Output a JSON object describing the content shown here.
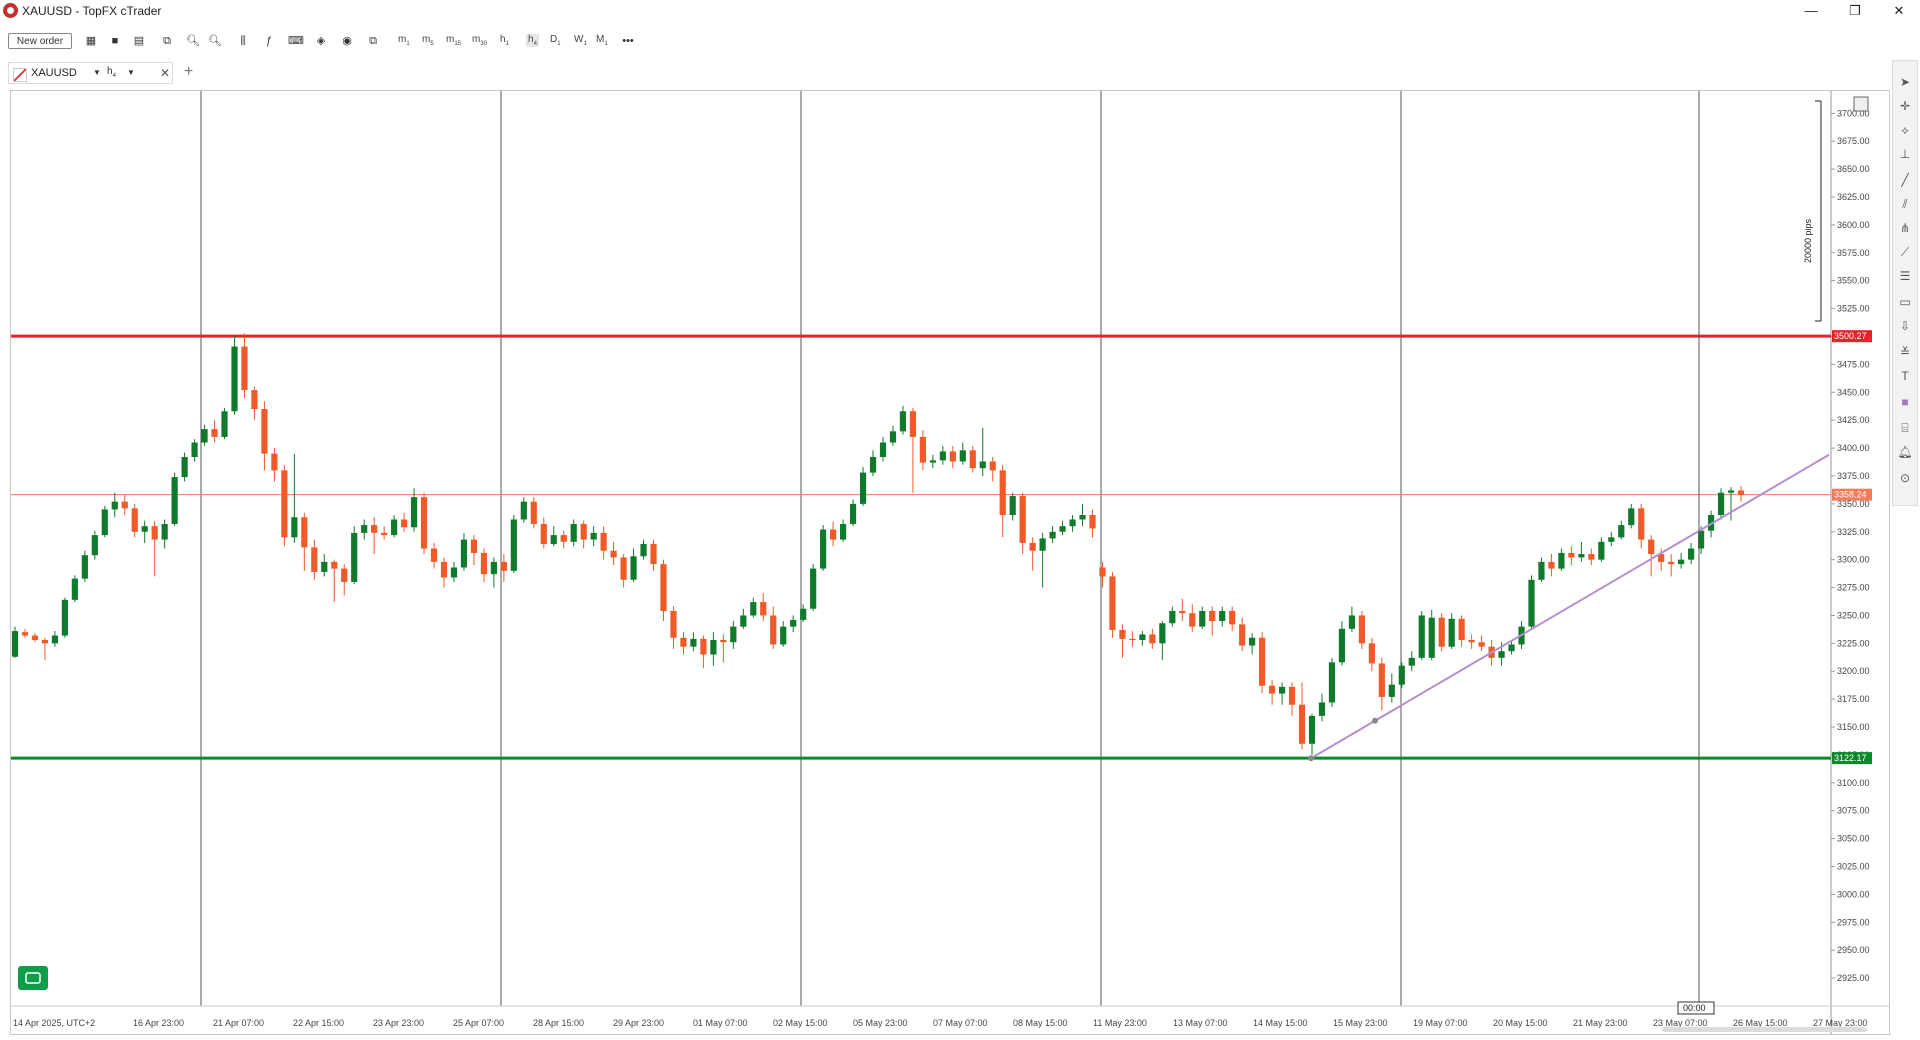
{
  "window": {
    "title": "XAUUSD - TopFX cTrader",
    "minimize_glyph": "—",
    "restore_glyph": "❐",
    "close_glyph": "✕"
  },
  "toolbar": {
    "new_order_label": "New order",
    "timeframes": [
      {
        "main": "m",
        "sub": "1"
      },
      {
        "main": "m",
        "sub": "5"
      },
      {
        "main": "m",
        "sub": "15"
      },
      {
        "main": "m",
        "sub": "30"
      },
      {
        "main": "h",
        "sub": "1"
      },
      {
        "main": "h",
        "sub": "4"
      },
      {
        "main": "D",
        "sub": "1"
      },
      {
        "main": "W",
        "sub": "1"
      },
      {
        "main": "M",
        "sub": "1"
      }
    ],
    "more_glyph": "•••"
  },
  "tab": {
    "symbol": "XAUUSD",
    "timeframe_main": "h",
    "timeframe_sub": "4",
    "add_glyph": "+"
  },
  "chart_data": {
    "type": "candlestick",
    "symbol": "XAUUSD",
    "timeframe": "h4",
    "y_range": [
      2900,
      3720
    ],
    "y_ticks": [
      2925,
      2950,
      2975,
      3000,
      3025,
      3050,
      3075,
      3100,
      3125,
      3150,
      3175,
      3200,
      3225,
      3250,
      3275,
      3300,
      3325,
      3350,
      3375,
      3400,
      3425,
      3450,
      3475,
      3500,
      3525,
      3550,
      3575,
      3600,
      3625,
      3650,
      3675,
      3700
    ],
    "x_labels": [
      "14 Apr 2025, UTC+2",
      "16 Apr 23:00",
      "21 Apr 07:00",
      "22 Apr 15:00",
      "23 Apr 23:00",
      "25 Apr 07:00",
      "28 Apr 15:00",
      "29 Apr 23:00",
      "01 May 07:00",
      "02 May 15:00",
      "05 May 23:00",
      "07 May 07:00",
      "08 May 15:00",
      "11 May 23:00",
      "13 May 07:00",
      "14 May 15:00",
      "15 May 23:00",
      "19 May 07:00",
      "20 May 15:00",
      "21 May 23:00",
      "23 May 07:00",
      "26 May 15:00",
      "27 May 23:00"
    ],
    "horizontal_lines": [
      {
        "price": 3500.27,
        "label": "3500.27",
        "color": "#e8212b"
      },
      {
        "price": 3122.17,
        "label": "3122.17",
        "color": "#0a8a2a"
      },
      {
        "price": 3358.24,
        "label": "3358.24",
        "color": "#f47c5a"
      }
    ],
    "trendline": {
      "from_price": 3122,
      "to_price": 3394,
      "color": "#b48fd0"
    },
    "pips_ruler_label": "20000 pips",
    "current_time_label": "00:00",
    "bull_color": "#0f7a2c",
    "bear_color": "#ef5a28",
    "candles": [
      [
        3213,
        3236,
        3212,
        3240
      ],
      [
        3235,
        3232,
        3230,
        3238
      ],
      [
        3232,
        3228,
        3226,
        3234
      ],
      [
        3228,
        3225,
        3210,
        3230
      ],
      [
        3225,
        3232,
        3222,
        3236
      ],
      [
        3232,
        3264,
        3230,
        3266
      ],
      [
        3264,
        3283,
        3262,
        3286
      ],
      [
        3283,
        3304,
        3280,
        3308
      ],
      [
        3304,
        3322,
        3300,
        3326
      ],
      [
        3322,
        3345,
        3320,
        3348
      ],
      [
        3345,
        3352,
        3338,
        3360
      ],
      [
        3352,
        3346,
        3340,
        3358
      ],
      [
        3346,
        3325,
        3320,
        3350
      ],
      [
        3325,
        3330,
        3315,
        3335
      ],
      [
        3330,
        3318,
        3285,
        3335
      ],
      [
        3318,
        3332,
        3310,
        3336
      ],
      [
        3332,
        3374,
        3330,
        3378
      ],
      [
        3374,
        3392,
        3370,
        3396
      ],
      [
        3392,
        3405,
        3388,
        3408
      ],
      [
        3405,
        3417,
        3402,
        3421
      ],
      [
        3417,
        3410,
        3405,
        3425
      ],
      [
        3410,
        3433,
        3408,
        3436
      ],
      [
        3433,
        3491,
        3430,
        3500
      ],
      [
        3491,
        3452,
        3445,
        3503
      ],
      [
        3452,
        3435,
        3425,
        3455
      ],
      [
        3435,
        3395,
        3380,
        3442
      ],
      [
        3395,
        3380,
        3370,
        3400
      ],
      [
        3380,
        3320,
        3312,
        3385
      ],
      [
        3320,
        3338,
        3315,
        3395
      ],
      [
        3338,
        3311,
        3290,
        3342
      ],
      [
        3311,
        3289,
        3282,
        3318
      ],
      [
        3289,
        3298,
        3285,
        3305
      ],
      [
        3298,
        3292,
        3262,
        3300
      ],
      [
        3292,
        3280,
        3268,
        3296
      ],
      [
        3280,
        3324,
        3278,
        3330
      ],
      [
        3324,
        3331,
        3318,
        3336
      ],
      [
        3331,
        3324,
        3305,
        3338
      ],
      [
        3324,
        3322,
        3318,
        3330
      ],
      [
        3322,
        3336,
        3320,
        3340
      ],
      [
        3336,
        3329,
        3325,
        3342
      ],
      [
        3329,
        3356,
        3325,
        3364
      ],
      [
        3356,
        3310,
        3305,
        3360
      ],
      [
        3310,
        3298,
        3292,
        3315
      ],
      [
        3298,
        3284,
        3275,
        3302
      ],
      [
        3284,
        3293,
        3280,
        3298
      ],
      [
        3293,
        3318,
        3290,
        3324
      ],
      [
        3318,
        3306,
        3295,
        3322
      ],
      [
        3306,
        3287,
        3280,
        3310
      ],
      [
        3287,
        3298,
        3275,
        3302
      ],
      [
        3298,
        3290,
        3280,
        3305
      ],
      [
        3290,
        3336,
        3288,
        3340
      ],
      [
        3336,
        3352,
        3333,
        3356
      ],
      [
        3352,
        3332,
        3328,
        3356
      ],
      [
        3332,
        3314,
        3310,
        3338
      ],
      [
        3314,
        3322,
        3312,
        3330
      ],
      [
        3322,
        3316,
        3310,
        3326
      ],
      [
        3316,
        3332,
        3312,
        3336
      ],
      [
        3332,
        3318,
        3310,
        3335
      ],
      [
        3318,
        3324,
        3312,
        3330
      ],
      [
        3324,
        3308,
        3300,
        3330
      ],
      [
        3308,
        3302,
        3295,
        3316
      ],
      [
        3302,
        3282,
        3275,
        3305
      ],
      [
        3282,
        3303,
        3280,
        3310
      ],
      [
        3303,
        3314,
        3300,
        3318
      ],
      [
        3314,
        3296,
        3290,
        3318
      ],
      [
        3296,
        3254,
        3245,
        3300
      ],
      [
        3254,
        3230,
        3220,
        3258
      ],
      [
        3230,
        3222,
        3215,
        3235
      ],
      [
        3222,
        3229,
        3218,
        3235
      ],
      [
        3229,
        3215,
        3203,
        3232
      ],
      [
        3215,
        3228,
        3205,
        3235
      ],
      [
        3228,
        3226,
        3208,
        3233
      ],
      [
        3226,
        3240,
        3220,
        3245
      ],
      [
        3240,
        3250,
        3238,
        3256
      ],
      [
        3250,
        3262,
        3248,
        3266
      ],
      [
        3262,
        3250,
        3245,
        3270
      ],
      [
        3250,
        3224,
        3220,
        3258
      ],
      [
        3224,
        3240,
        3222,
        3245
      ],
      [
        3240,
        3246,
        3235,
        3250
      ],
      [
        3246,
        3256,
        3244,
        3260
      ],
      [
        3256,
        3292,
        3254,
        3296
      ],
      [
        3292,
        3327,
        3290,
        3331
      ],
      [
        3327,
        3318,
        3312,
        3334
      ],
      [
        3318,
        3332,
        3316,
        3336
      ],
      [
        3332,
        3350,
        3330,
        3354
      ],
      [
        3350,
        3378,
        3348,
        3383
      ],
      [
        3378,
        3392,
        3375,
        3398
      ],
      [
        3392,
        3405,
        3388,
        3410
      ],
      [
        3405,
        3415,
        3402,
        3420
      ],
      [
        3415,
        3433,
        3412,
        3438
      ],
      [
        3433,
        3410,
        3360,
        3436
      ],
      [
        3410,
        3387,
        3380,
        3416
      ],
      [
        3387,
        3389,
        3382,
        3394
      ],
      [
        3389,
        3397,
        3385,
        3402
      ],
      [
        3397,
        3388,
        3382,
        3402
      ],
      [
        3388,
        3398,
        3385,
        3405
      ],
      [
        3398,
        3382,
        3378,
        3402
      ],
      [
        3382,
        3388,
        3375,
        3418
      ],
      [
        3388,
        3380,
        3370,
        3392
      ],
      [
        3380,
        3340,
        3320,
        3385
      ],
      [
        3340,
        3357,
        3335,
        3360
      ],
      [
        3357,
        3315,
        3305,
        3360
      ],
      [
        3315,
        3308,
        3290,
        3320
      ],
      [
        3308,
        3319,
        3275,
        3324
      ],
      [
        3319,
        3325,
        3315,
        3330
      ],
      [
        3325,
        3330,
        3322,
        3335
      ],
      [
        3330,
        3336,
        3325,
        3340
      ],
      [
        3336,
        3340,
        3330,
        3350
      ],
      [
        3340,
        3328,
        3320,
        3345
      ],
      [
        3293,
        3285,
        3275,
        3298
      ],
      [
        3285,
        3237,
        3230,
        3289
      ],
      [
        3237,
        3229,
        3212,
        3242
      ],
      [
        3229,
        3228,
        3222,
        3236
      ],
      [
        3228,
        3233,
        3223,
        3236
      ],
      [
        3233,
        3225,
        3220,
        3238
      ],
      [
        3225,
        3243,
        3210,
        3245
      ],
      [
        3243,
        3254,
        3240,
        3258
      ],
      [
        3254,
        3252,
        3245,
        3265
      ],
      [
        3252,
        3240,
        3235,
        3260
      ],
      [
        3240,
        3254,
        3238,
        3258
      ],
      [
        3254,
        3245,
        3232,
        3258
      ],
      [
        3245,
        3254,
        3240,
        3258
      ],
      [
        3254,
        3242,
        3236,
        3258
      ],
      [
        3242,
        3223,
        3218,
        3248
      ],
      [
        3223,
        3230,
        3215,
        3234
      ],
      [
        3230,
        3187,
        3180,
        3235
      ],
      [
        3187,
        3180,
        3170,
        3192
      ],
      [
        3180,
        3186,
        3170,
        3190
      ],
      [
        3186,
        3170,
        3160,
        3190
      ],
      [
        3170,
        3135,
        3130,
        3190
      ],
      [
        3135,
        3160,
        3125,
        3162
      ],
      [
        3160,
        3172,
        3155,
        3180
      ],
      [
        3172,
        3208,
        3168,
        3212
      ],
      [
        3208,
        3238,
        3205,
        3245
      ],
      [
        3238,
        3250,
        3235,
        3258
      ],
      [
        3250,
        3225,
        3220,
        3254
      ],
      [
        3225,
        3207,
        3200,
        3230
      ],
      [
        3207,
        3177,
        3165,
        3212
      ],
      [
        3177,
        3188,
        3172,
        3198
      ],
      [
        3188,
        3205,
        3185,
        3208
      ],
      [
        3205,
        3212,
        3200,
        3218
      ],
      [
        3212,
        3250,
        3210,
        3254
      ],
      [
        3212,
        3248,
        3210,
        3255
      ],
      [
        3248,
        3222,
        3218,
        3252
      ],
      [
        3222,
        3247,
        3220,
        3252
      ],
      [
        3247,
        3228,
        3222,
        3250
      ],
      [
        3228,
        3226,
        3220,
        3233
      ],
      [
        3226,
        3222,
        3218,
        3232
      ],
      [
        3222,
        3212,
        3205,
        3228
      ],
      [
        3212,
        3218,
        3205,
        3226
      ],
      [
        3218,
        3224,
        3215,
        3228
      ],
      [
        3224,
        3240,
        3220,
        3245
      ],
      [
        3240,
        3282,
        3238,
        3286
      ],
      [
        3282,
        3298,
        3280,
        3302
      ],
      [
        3298,
        3292,
        3285,
        3305
      ],
      [
        3292,
        3306,
        3290,
        3310
      ],
      [
        3306,
        3302,
        3295,
        3312
      ],
      [
        3302,
        3305,
        3298,
        3316
      ],
      [
        3305,
        3300,
        3295,
        3310
      ],
      [
        3300,
        3316,
        3298,
        3320
      ],
      [
        3316,
        3320,
        3312,
        3325
      ],
      [
        3320,
        3331,
        3318,
        3335
      ],
      [
        3331,
        3346,
        3328,
        3350
      ],
      [
        3346,
        3318,
        3310,
        3350
      ],
      [
        3318,
        3305,
        3285,
        3322
      ],
      [
        3305,
        3298,
        3290,
        3310
      ],
      [
        3298,
        3296,
        3285,
        3305
      ],
      [
        3296,
        3300,
        3292,
        3306
      ],
      [
        3300,
        3310,
        3296,
        3315
      ],
      [
        3310,
        3326,
        3305,
        3330
      ],
      [
        3326,
        3340,
        3320,
        3344
      ],
      [
        3340,
        3360,
        3336,
        3364
      ],
      [
        3360,
        3362,
        3335,
        3365
      ],
      [
        3362,
        3358,
        3352,
        3366
      ]
    ]
  }
}
